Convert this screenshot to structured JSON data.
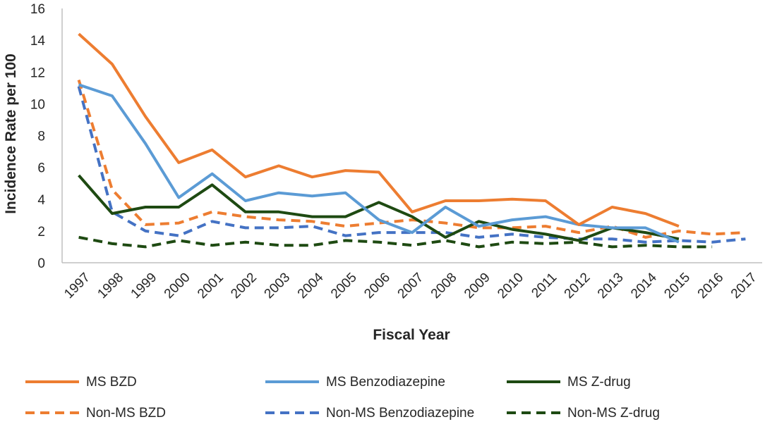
{
  "chart_data": {
    "type": "line",
    "title": "",
    "xlabel": "Fiscal Year",
    "ylabel": "Incidence Rate per 100",
    "ylim": [
      0,
      16
    ],
    "yticks": [
      "0",
      "2",
      "4",
      "6",
      "8",
      "10",
      "12",
      "14",
      "16"
    ],
    "categories": [
      "1997",
      "1998",
      "1999",
      "2000",
      "2001",
      "2002",
      "2003",
      "2004",
      "2005",
      "2006",
      "2007",
      "2008",
      "2009",
      "2010",
      "2011",
      "2012",
      "2013",
      "2014",
      "2015",
      "2016",
      "2017"
    ],
    "grid": false,
    "legend_position": "bottom",
    "series": [
      {
        "name": "MS BZD",
        "color": "#ED7D31",
        "style": "solid",
        "values": [
          14.4,
          12.5,
          9.2,
          6.3,
          7.1,
          5.4,
          6.1,
          5.4,
          5.8,
          5.7,
          3.2,
          3.9,
          3.9,
          4.0,
          3.9,
          2.4,
          3.5,
          3.1,
          2.3,
          null,
          null
        ]
      },
      {
        "name": "MS Benzodiazepine",
        "color": "#5B9BD5",
        "style": "solid",
        "values": [
          11.2,
          10.5,
          7.5,
          4.1,
          5.6,
          3.9,
          4.4,
          4.2,
          4.4,
          2.7,
          1.9,
          3.5,
          2.3,
          2.7,
          2.9,
          2.4,
          2.2,
          2.2,
          1.3,
          null,
          null
        ]
      },
      {
        "name": "MS Z-drug",
        "color": "#1E4A12",
        "style": "solid",
        "values": [
          5.5,
          3.1,
          3.5,
          3.5,
          4.9,
          3.2,
          3.2,
          2.9,
          2.9,
          3.8,
          2.9,
          1.6,
          2.6,
          2.1,
          1.8,
          1.4,
          2.2,
          1.9,
          1.5,
          null,
          null
        ]
      },
      {
        "name": "Non-MS BZD",
        "color": "#ED7D31",
        "style": "dashed",
        "values": [
          11.5,
          4.6,
          2.4,
          2.5,
          3.2,
          2.9,
          2.7,
          2.6,
          2.3,
          2.5,
          2.7,
          2.5,
          2.2,
          2.2,
          2.3,
          1.9,
          2.3,
          1.6,
          2.0,
          1.8,
          1.9
        ]
      },
      {
        "name": "Non-MS Benzodiazepine",
        "color": "#4472C4",
        "style": "dashed",
        "values": [
          11.1,
          3.2,
          2.0,
          1.7,
          2.6,
          2.2,
          2.2,
          2.3,
          1.7,
          1.9,
          1.9,
          1.9,
          1.6,
          1.8,
          1.6,
          1.5,
          1.5,
          1.3,
          1.4,
          1.3,
          1.5
        ]
      },
      {
        "name": "Non-MS Z-drug",
        "color": "#1E4A12",
        "style": "dashed",
        "values": [
          1.6,
          1.2,
          1.0,
          1.4,
          1.1,
          1.3,
          1.1,
          1.1,
          1.4,
          1.3,
          1.1,
          1.4,
          1.0,
          1.3,
          1.2,
          1.3,
          1.0,
          1.1,
          1.0,
          1.0,
          null
        ]
      }
    ]
  }
}
